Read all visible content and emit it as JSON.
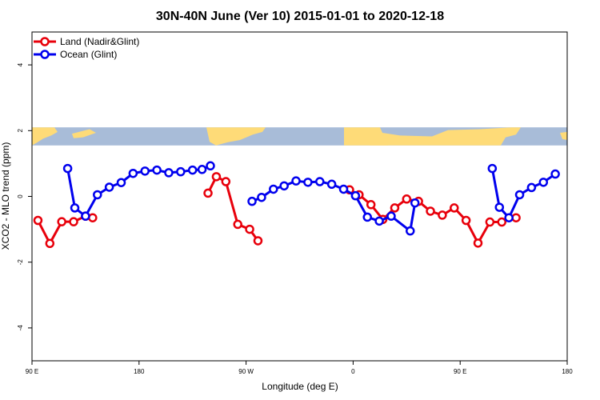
{
  "chart_data": {
    "type": "line",
    "title": "30N-40N June (Ver 10)   2015-01-01 to 2020-12-18",
    "xlabel": "Longitude (deg E)",
    "ylabel": "XCO2 - MLO trend (ppm)",
    "xlim": [
      90,
      540
    ],
    "ylim": [
      -5,
      5
    ],
    "x_ticks": [
      {
        "value": 90,
        "label": "90 E"
      },
      {
        "value": 180,
        "label": "180"
      },
      {
        "value": 270,
        "label": "90 W"
      },
      {
        "value": 360,
        "label": "0"
      },
      {
        "value": 450,
        "label": "90 E"
      },
      {
        "value": 540,
        "label": "180"
      }
    ],
    "y_ticks": [
      {
        "value": -4,
        "label": "-4"
      },
      {
        "value": -2,
        "label": "-2"
      },
      {
        "value": 0,
        "label": "0"
      },
      {
        "value": 2,
        "label": "2"
      },
      {
        "value": 4,
        "label": "4"
      }
    ],
    "legend_position": "top-left",
    "map_strip": {
      "y_range": [
        1.55,
        2.1
      ],
      "ocean_color": "#a8bcd8",
      "land_color": "#fedb78"
    },
    "series": [
      {
        "name": "Land (Nadir&Glint)",
        "color": "#e8000b",
        "segments": [
          [
            [
              95,
              -0.73
            ],
            [
              105,
              -1.43
            ],
            [
              115,
              -0.77
            ],
            [
              125,
              -0.77
            ],
            [
              135,
              -0.6
            ],
            [
              141,
              -0.65
            ]
          ],
          [
            [
              238,
              0.1
            ],
            [
              245,
              0.6
            ],
            [
              253,
              0.45
            ],
            [
              263,
              -0.85
            ],
            [
              273,
              -1.0
            ],
            [
              280,
              -1.35
            ]
          ],
          [
            [
              357,
              0.2
            ],
            [
              365,
              0.05
            ],
            [
              375,
              -0.25
            ],
            [
              385,
              -0.7
            ],
            [
              395,
              -0.35
            ],
            [
              405,
              -0.08
            ],
            [
              415,
              -0.15
            ],
            [
              425,
              -0.45
            ],
            [
              435,
              -0.57
            ],
            [
              445,
              -0.35
            ],
            [
              455,
              -0.73
            ],
            [
              465,
              -1.42
            ],
            [
              475,
              -0.78
            ],
            [
              485,
              -0.78
            ],
            [
              497,
              -0.65
            ]
          ]
        ]
      },
      {
        "name": "Ocean (Glint)",
        "color": "#0000ee",
        "segments": [
          [
            [
              120,
              0.85
            ],
            [
              126,
              -0.35
            ],
            [
              135,
              -0.6
            ],
            [
              145,
              0.05
            ],
            [
              155,
              0.28
            ],
            [
              165,
              0.42
            ],
            [
              175,
              0.7
            ],
            [
              185,
              0.77
            ],
            [
              195,
              0.8
            ],
            [
              205,
              0.72
            ],
            [
              215,
              0.75
            ],
            [
              225,
              0.8
            ],
            [
              233,
              0.82
            ],
            [
              240,
              0.93
            ]
          ],
          [
            [
              275,
              -0.15
            ],
            [
              283,
              -0.03
            ],
            [
              293,
              0.22
            ],
            [
              302,
              0.32
            ],
            [
              312,
              0.47
            ],
            [
              322,
              0.43
            ],
            [
              332,
              0.45
            ],
            [
              342,
              0.37
            ],
            [
              352,
              0.22
            ],
            [
              362,
              0.02
            ],
            [
              372,
              -0.63
            ],
            [
              382,
              -0.75
            ],
            [
              392,
              -0.6
            ],
            [
              408,
              -1.05
            ],
            [
              412,
              -0.2
            ]
          ],
          [
            [
              477,
              0.85
            ],
            [
              483,
              -0.33
            ],
            [
              491,
              -0.65
            ],
            [
              500,
              0.05
            ],
            [
              510,
              0.27
            ],
            [
              520,
              0.43
            ],
            [
              530,
              0.68
            ]
          ]
        ]
      }
    ]
  }
}
